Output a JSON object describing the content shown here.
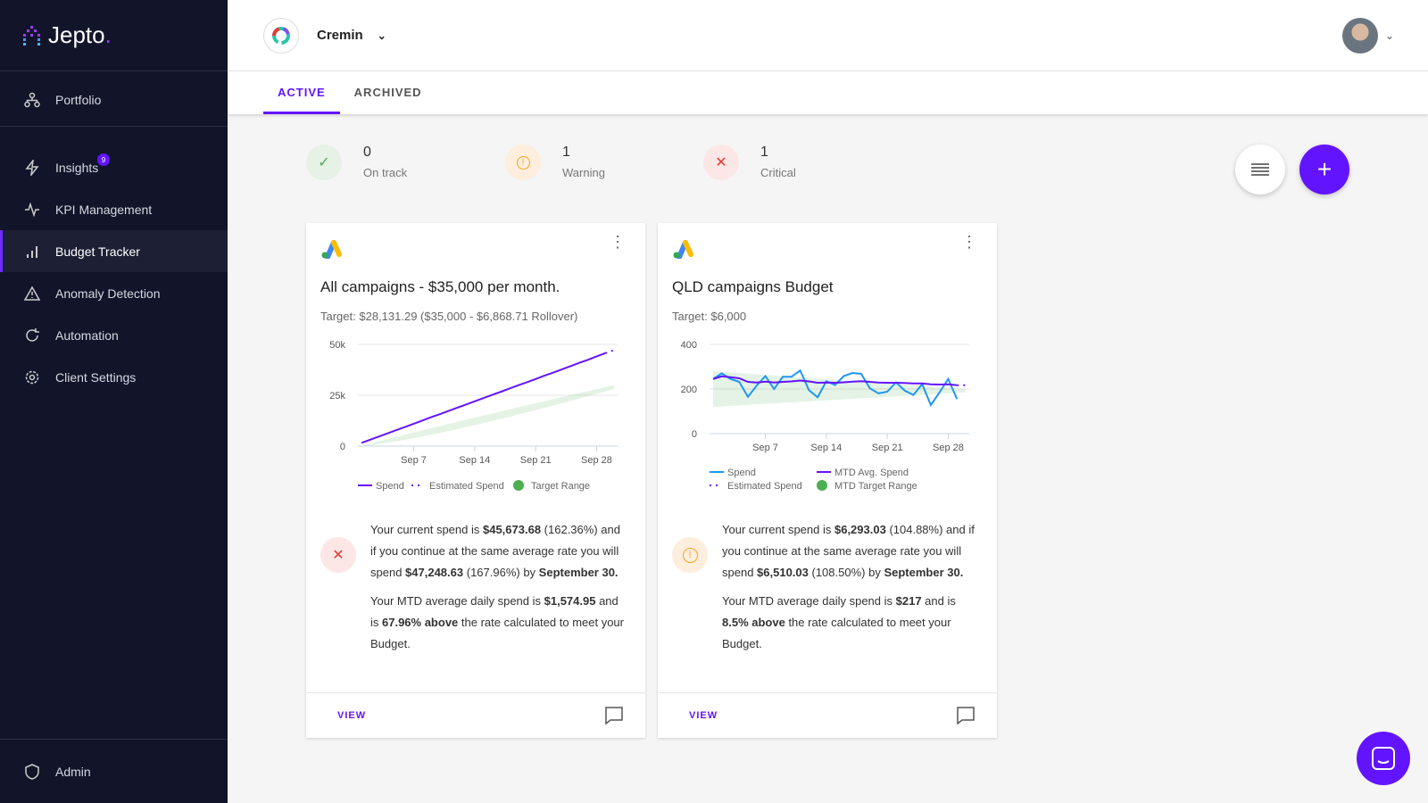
{
  "brand": {
    "name": "Jepto",
    "dot": "."
  },
  "sidebar": {
    "items": [
      {
        "label": "Portfolio"
      },
      {
        "label": "Insights",
        "badge": "9"
      },
      {
        "label": "KPI Management"
      },
      {
        "label": "Budget Tracker"
      },
      {
        "label": "Anomaly Detection"
      },
      {
        "label": "Automation"
      },
      {
        "label": "Client Settings"
      }
    ],
    "admin": "Admin"
  },
  "header": {
    "client": "Cremin"
  },
  "tabs": [
    {
      "label": "ACTIVE"
    },
    {
      "label": "ARCHIVED"
    }
  ],
  "stats": [
    {
      "value": "0",
      "label": "On track"
    },
    {
      "value": "1",
      "label": "Warning"
    },
    {
      "value": "1",
      "label": "Critical"
    }
  ],
  "colors": {
    "accent": "#6314ff",
    "spend": "#2196f3",
    "avg": "#6314ff",
    "target": "#4caf50",
    "critical": "#e53935",
    "warning": "#f5a623",
    "ok": "#4caf50"
  },
  "cards": [
    {
      "title": "All campaigns - $35,000 per month.",
      "target": "Target: $28,131.29 ($35,000 - $6,868.71 Rollover)",
      "p1": [
        {
          "t": "Your current spend is "
        },
        {
          "b": "$45,673.68"
        },
        {
          "t": " (162.36%) and if you continue at the same average rate you will spend "
        },
        {
          "b": "$47,248.63"
        },
        {
          "t": " (167.96%) by "
        },
        {
          "b": "September 30."
        }
      ],
      "p2": [
        {
          "t": "Your MTD average daily spend is "
        },
        {
          "b": "$1,574.95"
        },
        {
          "t": " and is "
        },
        {
          "b": "67.96% above"
        },
        {
          "t": " the rate calculated to meet your Budget."
        }
      ],
      "view": "VIEW"
    },
    {
      "title": "QLD campaigns Budget",
      "target": "Target: $6,000",
      "p1": [
        {
          "t": "Your current spend is "
        },
        {
          "b": "$6,293.03"
        },
        {
          "t": " (104.88%) and if you continue at the same average rate you will spend "
        },
        {
          "b": "$6,510.03"
        },
        {
          "t": " (108.50%) by "
        },
        {
          "b": "September 30."
        }
      ],
      "p2": [
        {
          "t": "Your MTD average daily spend is "
        },
        {
          "b": "$217"
        },
        {
          "t": " and is "
        },
        {
          "b": "8.5% above"
        },
        {
          "t": " the rate calculated to meet your Budget."
        }
      ],
      "view": "VIEW"
    }
  ],
  "chart_data": [
    {
      "type": "line",
      "x_start_day": 1,
      "x_end_day": 30,
      "ylim": [
        0,
        50000
      ],
      "yticks": [
        "0",
        "25k",
        "50k"
      ],
      "yticks_values": [
        0,
        25000,
        50000
      ],
      "xticks": [
        "Sep 7",
        "Sep 14",
        "Sep 21",
        "Sep 28"
      ],
      "xticks_days": [
        7,
        14,
        21,
        28
      ],
      "legend": [
        "Spend",
        "Estimated Spend",
        "Target Range"
      ],
      "series": [
        {
          "name": "Spend",
          "values": [
            1575,
            3150,
            4700,
            6300,
            7850,
            9400,
            11000,
            12600,
            14200,
            15700,
            17300,
            18900,
            20400,
            22000,
            23600,
            25200,
            26700,
            28300,
            29900,
            31400,
            33000,
            34600,
            36100,
            37700,
            39300,
            40900,
            42400,
            44100,
            45674
          ]
        },
        {
          "name": "Estimated Spend",
          "values": [
            {
              "day": 30,
              "value": 47249
            }
          ]
        },
        {
          "name": "Target Range",
          "low": [
            0,
            28131
          ],
          "high": [
            0,
            30000
          ],
          "low_mid": 10000,
          "high_mid": 15500
        }
      ]
    },
    {
      "type": "line",
      "x_start_day": 1,
      "x_end_day": 30,
      "ylim": [
        0,
        400
      ],
      "yticks": [
        "0",
        "200",
        "400"
      ],
      "yticks_values": [
        0,
        200,
        400
      ],
      "xticks": [
        "Sep 7",
        "Sep 14",
        "Sep 21",
        "Sep 28"
      ],
      "xticks_days": [
        7,
        14,
        21,
        28
      ],
      "legend": [
        "Spend",
        "MTD Avg. Spend",
        "Estimated Spend",
        "MTD Target Range"
      ],
      "series": [
        {
          "name": "Spend",
          "values": [
            245,
            270,
            245,
            232,
            165,
            215,
            258,
            200,
            255,
            255,
            283,
            195,
            163,
            235,
            218,
            258,
            272,
            268,
            203,
            180,
            188,
            230,
            193,
            173,
            222,
            128,
            185,
            245,
            155
          ]
        },
        {
          "name": "MTD Avg. Spend",
          "values": [
            245,
            257,
            253,
            248,
            232,
            229,
            233,
            229,
            232,
            234,
            238,
            234,
            228,
            229,
            228,
            230,
            233,
            235,
            232,
            229,
            228,
            228,
            227,
            225,
            225,
            221,
            220,
            221,
            217
          ]
        },
        {
          "name": "Estimated Spend",
          "values": [
            {
              "day": 30,
              "value": 217
            }
          ]
        },
        {
          "name": "MTD Target Range",
          "low": [
            120,
            185
          ],
          "high": [
            280,
            200
          ]
        }
      ]
    }
  ]
}
